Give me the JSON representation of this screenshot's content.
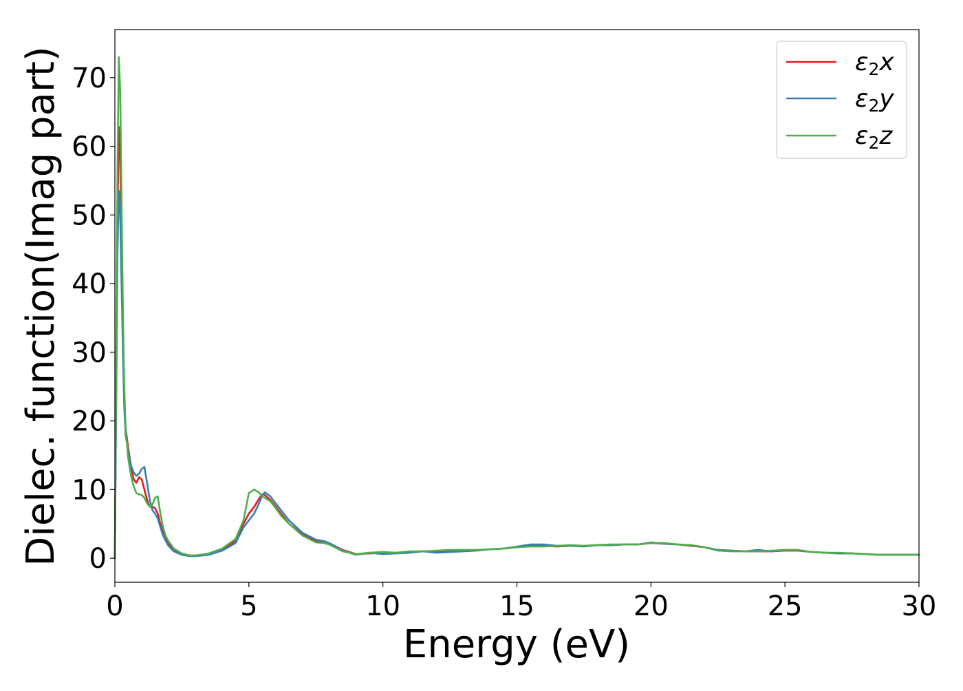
{
  "chart_data": {
    "type": "line",
    "title": "",
    "xlabel": "Energy (eV)",
    "ylabel": "Dielec. function(Imag part)",
    "xlim": [
      0,
      30
    ],
    "ylim": [
      -3.5,
      77
    ],
    "xticks": [
      0,
      5,
      10,
      15,
      20,
      25,
      30
    ],
    "yticks": [
      0,
      10,
      20,
      30,
      40,
      50,
      60,
      70
    ],
    "grid": false,
    "legend_position": "top-right",
    "legend_entries": [
      {
        "main": "ε",
        "sub": "2",
        "var": "x"
      },
      {
        "main": "ε",
        "sub": "2",
        "var": "y"
      },
      {
        "main": "ε",
        "sub": "2",
        "var": "z"
      }
    ],
    "series": [
      {
        "name": "ε2x",
        "color": "#e41a1c",
        "x": [
          0,
          0.05,
          0.1,
          0.15,
          0.2,
          0.25,
          0.3,
          0.35,
          0.4,
          0.5,
          0.6,
          0.7,
          0.8,
          0.9,
          1.0,
          1.1,
          1.2,
          1.3,
          1.4,
          1.5,
          1.6,
          1.7,
          1.8,
          1.9,
          2.0,
          2.2,
          2.5,
          2.8,
          3.0,
          3.5,
          4.0,
          4.5,
          4.8,
          5.0,
          5.2,
          5.4,
          5.5,
          5.6,
          5.8,
          6.0,
          6.2,
          6.5,
          7.0,
          7.5,
          7.8,
          8.0,
          8.5,
          9.0,
          9.5,
          10,
          10.5,
          11,
          11.5,
          12,
          12.5,
          13,
          13.5,
          14,
          14.5,
          15,
          15.5,
          16,
          16.5,
          17,
          17.5,
          18,
          18.5,
          19,
          19.5,
          20,
          20.5,
          21,
          21.5,
          22,
          22.5,
          23,
          23.5,
          24,
          24.5,
          25,
          25.5,
          26,
          26.5,
          27,
          27.5,
          28,
          28.5,
          29,
          29.5,
          30
        ],
        "y": [
          0,
          25,
          50,
          62.8,
          58,
          45,
          32,
          23,
          19,
          16,
          13.5,
          11.5,
          11,
          11.8,
          11.5,
          10,
          8.5,
          7.5,
          7.5,
          7.3,
          6.5,
          5,
          3.8,
          3,
          2.2,
          1.2,
          0.6,
          0.4,
          0.4,
          0.6,
          1.2,
          2.5,
          5,
          6.5,
          7.5,
          8.8,
          9.3,
          9.2,
          8.5,
          7.5,
          6.5,
          5,
          3.5,
          2.5,
          2.3,
          2.2,
          1.2,
          0.6,
          0.7,
          0.8,
          0.8,
          0.9,
          1.0,
          1.0,
          1.1,
          1.1,
          1.2,
          1.3,
          1.4,
          1.6,
          1.8,
          1.8,
          1.7,
          1.8,
          1.8,
          1.9,
          1.9,
          2.0,
          2.0,
          2.2,
          2.1,
          2.0,
          1.8,
          1.6,
          1.2,
          1.1,
          1.0,
          1.0,
          1.0,
          1.1,
          1.1,
          0.9,
          0.8,
          0.7,
          0.7,
          0.6,
          0.5,
          0.5,
          0.5,
          0.5
        ]
      },
      {
        "name": "ε2y",
        "color": "#377eb8",
        "x": [
          0,
          0.05,
          0.1,
          0.15,
          0.2,
          0.25,
          0.3,
          0.35,
          0.4,
          0.5,
          0.6,
          0.7,
          0.8,
          0.9,
          1.0,
          1.1,
          1.2,
          1.3,
          1.4,
          1.5,
          1.6,
          1.7,
          1.8,
          1.9,
          2.0,
          2.2,
          2.5,
          2.8,
          3.0,
          3.5,
          4.0,
          4.5,
          4.8,
          5.0,
          5.2,
          5.4,
          5.5,
          5.6,
          5.8,
          6.0,
          6.2,
          6.5,
          7.0,
          7.5,
          7.8,
          8.0,
          8.5,
          9.0,
          9.5,
          10,
          10.5,
          11,
          11.5,
          12,
          12.5,
          13,
          13.5,
          14,
          14.5,
          15,
          15.5,
          16,
          16.5,
          17,
          17.5,
          18,
          18.5,
          19,
          19.5,
          20,
          20.5,
          21,
          21.5,
          22,
          22.5,
          23,
          23.5,
          24,
          24.5,
          25,
          25.5,
          26,
          26.5,
          27,
          27.5,
          28,
          28.5,
          29,
          29.5,
          30
        ],
        "y": [
          0,
          22,
          45,
          53.5,
          50,
          40,
          30,
          22,
          18,
          15.5,
          13.5,
          12.5,
          12,
          12.3,
          13,
          13.3,
          11,
          8.5,
          7,
          6.5,
          5.8,
          4.5,
          3.3,
          2.5,
          1.8,
          1.0,
          0.5,
          0.3,
          0.3,
          0.5,
          1.1,
          2.2,
          4.5,
          5.5,
          6.5,
          8.2,
          9.2,
          9.6,
          9.0,
          8.0,
          7.0,
          5.5,
          3.7,
          2.7,
          2.5,
          2.2,
          1.1,
          0.5,
          0.8,
          0.6,
          0.7,
          0.8,
          1.0,
          0.8,
          0.9,
          1.0,
          1.1,
          1.3,
          1.4,
          1.7,
          2.0,
          2.0,
          1.8,
          1.8,
          1.7,
          1.9,
          1.9,
          2.0,
          2.0,
          2.3,
          2.1,
          2.0,
          1.9,
          1.6,
          1.2,
          1.1,
          1.0,
          1.2,
          1.0,
          1.2,
          1.2,
          0.9,
          0.8,
          0.7,
          0.7,
          0.6,
          0.5,
          0.5,
          0.5,
          0.5
        ]
      },
      {
        "name": "ε2z",
        "color": "#4daf4a",
        "x": [
          0,
          0.05,
          0.1,
          0.15,
          0.2,
          0.25,
          0.3,
          0.35,
          0.4,
          0.5,
          0.6,
          0.7,
          0.8,
          0.9,
          1.0,
          1.1,
          1.2,
          1.3,
          1.4,
          1.5,
          1.6,
          1.7,
          1.8,
          1.9,
          2.0,
          2.2,
          2.5,
          2.8,
          3.0,
          3.5,
          4.0,
          4.5,
          4.8,
          5.0,
          5.2,
          5.4,
          5.5,
          5.6,
          5.8,
          6.0,
          6.2,
          6.5,
          7.0,
          7.5,
          7.8,
          8.0,
          8.5,
          9.0,
          9.5,
          10,
          10.5,
          11,
          11.5,
          12,
          12.5,
          13,
          13.5,
          14,
          14.5,
          15,
          15.5,
          16,
          16.5,
          17,
          17.5,
          18,
          18.5,
          19,
          19.5,
          20,
          20.5,
          21,
          21.5,
          22,
          22.5,
          23,
          23.5,
          24,
          24.5,
          25,
          25.5,
          26,
          26.5,
          27,
          27.5,
          28,
          28.5,
          29,
          29.5,
          30
        ],
        "y": [
          0,
          28,
          58,
          73,
          68,
          52,
          36,
          25,
          19,
          14.5,
          12,
          10.5,
          9.5,
          9.3,
          9.2,
          8.8,
          8.0,
          7.5,
          7.8,
          8.8,
          9.0,
          6.5,
          4.5,
          3.2,
          2.5,
          1.4,
          0.7,
          0.4,
          0.4,
          0.7,
          1.4,
          2.8,
          5.5,
          9.5,
          10.0,
          9.5,
          9.0,
          8.8,
          8.3,
          7.3,
          6.2,
          5.0,
          3.3,
          2.3,
          2.2,
          2.0,
          1.0,
          0.6,
          0.8,
          0.9,
          0.8,
          1.0,
          1.0,
          1.1,
          1.2,
          1.2,
          1.2,
          1.3,
          1.4,
          1.6,
          1.7,
          1.7,
          1.8,
          1.9,
          1.8,
          1.9,
          2.0,
          2.0,
          2.0,
          2.2,
          2.2,
          2.0,
          1.9,
          1.6,
          1.1,
          1.0,
          1.0,
          1.0,
          1.1,
          1.2,
          1.2,
          0.9,
          0.8,
          0.8,
          0.7,
          0.6,
          0.5,
          0.5,
          0.5,
          0.5
        ]
      }
    ]
  }
}
